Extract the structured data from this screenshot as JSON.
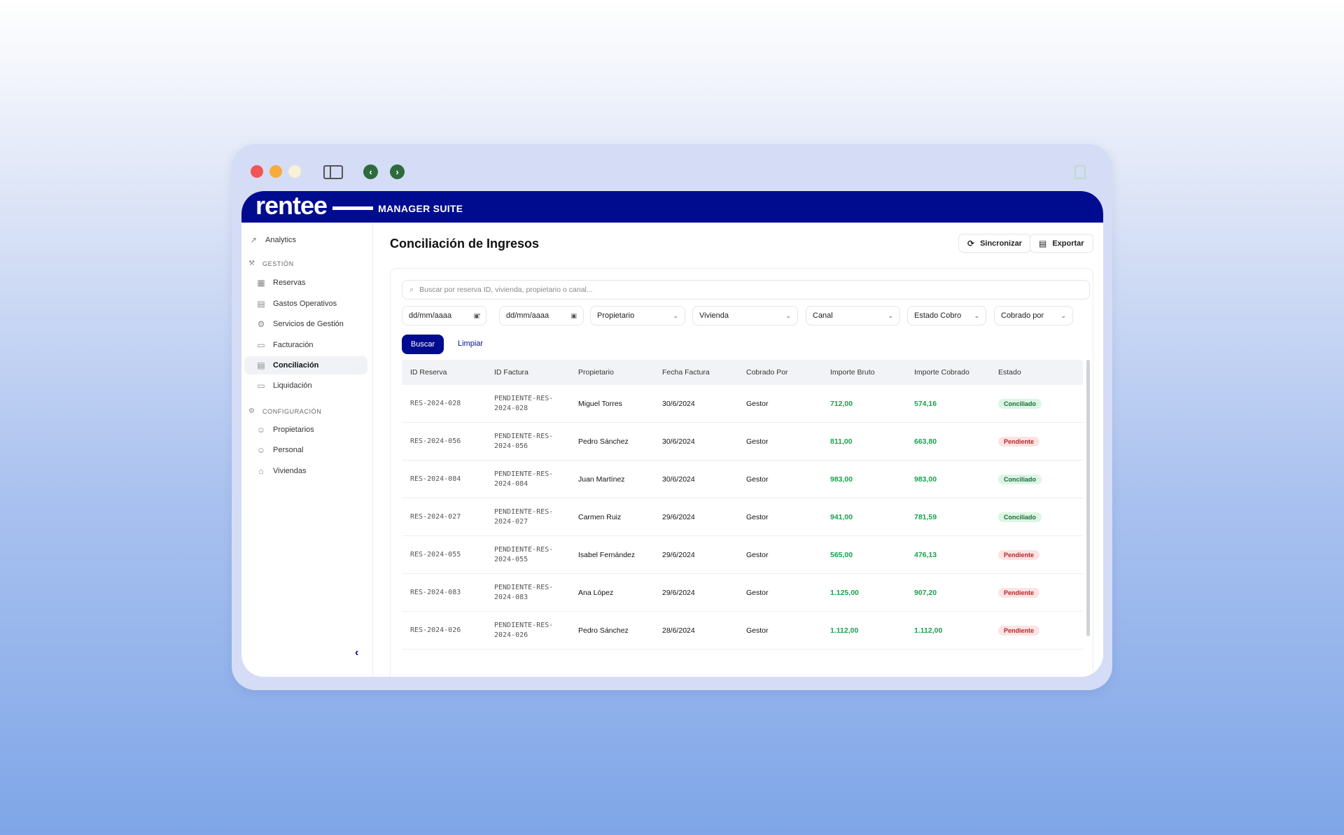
{
  "brand": {
    "logo": "rentee",
    "suite": "MANAGER SUITE"
  },
  "sidebar": {
    "analytics": "Analytics",
    "section_gestion": "GESTIÓN",
    "gestion_items": [
      "Reservas",
      "Gastos Operativos",
      "Servicios de Gestión",
      "Facturación",
      "Conciliación",
      "Liquidación"
    ],
    "section_config": "CONFIGURACIÓN",
    "config_items": [
      "Propietarios",
      "Personal",
      "Viviendas"
    ],
    "active": "Conciliación"
  },
  "page": {
    "title": "Conciliación de Ingresos",
    "sync_label": "Sincronizar",
    "export_label": "Exportar"
  },
  "filters": {
    "search_placeholder": "Buscar por reserva ID, vivienda, propietario o canal...",
    "date_from": "dd/mm/aaaa",
    "date_to": "dd/mm/aaaa",
    "date_separator": "-",
    "propietario": "Propietario",
    "vivienda": "Vivienda",
    "canal": "Canal",
    "estado_cobro": "Estado Cobro",
    "cobrado_por": "Cobrado por",
    "buscar": "Buscar",
    "limpiar": "Limpiar"
  },
  "table": {
    "headers": [
      "ID Reserva",
      "ID Factura",
      "Propietario",
      "Fecha Factura",
      "Cobrado Por",
      "Importe Bruto",
      "Importe Cobrado",
      "Estado"
    ],
    "rows": [
      {
        "id": "RES-2024-028",
        "factura1": "PENDIENTE-RES-",
        "factura2": "2024-028",
        "propietario": "Miguel Torres",
        "fecha": "30/6/2024",
        "cobrado": "Gestor",
        "bruto": "712,00",
        "cobrado_importe": "574,16",
        "estado": "Conciliado",
        "status": "ok"
      },
      {
        "id": "RES-2024-056",
        "factura1": "PENDIENTE-RES-",
        "factura2": "2024-056",
        "propietario": "Pedro Sánchez",
        "fecha": "30/6/2024",
        "cobrado": "Gestor",
        "bruto": "811,00",
        "cobrado_importe": "663,80",
        "estado": "Pendiente",
        "status": "pend"
      },
      {
        "id": "RES-2024-084",
        "factura1": "PENDIENTE-RES-",
        "factura2": "2024-084",
        "propietario": "Juan Martínez",
        "fecha": "30/6/2024",
        "cobrado": "Gestor",
        "bruto": "983,00",
        "cobrado_importe": "983,00",
        "estado": "Conciliado",
        "status": "ok"
      },
      {
        "id": "RES-2024-027",
        "factura1": "PENDIENTE-RES-",
        "factura2": "2024-027",
        "propietario": "Carmen Ruiz",
        "fecha": "29/6/2024",
        "cobrado": "Gestor",
        "bruto": "941,00",
        "cobrado_importe": "781,59",
        "estado": "Conciliado",
        "status": "ok"
      },
      {
        "id": "RES-2024-055",
        "factura1": "PENDIENTE-RES-",
        "factura2": "2024-055",
        "propietario": "Isabel Fernández",
        "fecha": "29/6/2024",
        "cobrado": "Gestor",
        "bruto": "565,00",
        "cobrado_importe": "476,13",
        "estado": "Pendiente",
        "status": "pend"
      },
      {
        "id": "RES-2024-083",
        "factura1": "PENDIENTE-RES-",
        "factura2": "2024-083",
        "propietario": "Ana López",
        "fecha": "29/6/2024",
        "cobrado": "Gestor",
        "bruto": "1.125,00",
        "cobrado_importe": "907,20",
        "estado": "Pendiente",
        "status": "pend"
      },
      {
        "id": "RES-2024-026",
        "factura1": "PENDIENTE-RES-",
        "factura2": "2024-026",
        "propietario": "Pedro Sánchez",
        "fecha": "28/6/2024",
        "cobrado": "Gestor",
        "bruto": "1.112,00",
        "cobrado_importe": "1.112,00",
        "estado": "Pendiente",
        "status": "pend"
      }
    ]
  },
  "colors": {
    "brand": "#000c8f",
    "positive": "#16a34a",
    "ok_badge": "#dcf5e4",
    "pend_badge": "#fde3e3"
  },
  "icons": {
    "back": "chevron-left-icon",
    "forward": "chevron-right-icon"
  }
}
